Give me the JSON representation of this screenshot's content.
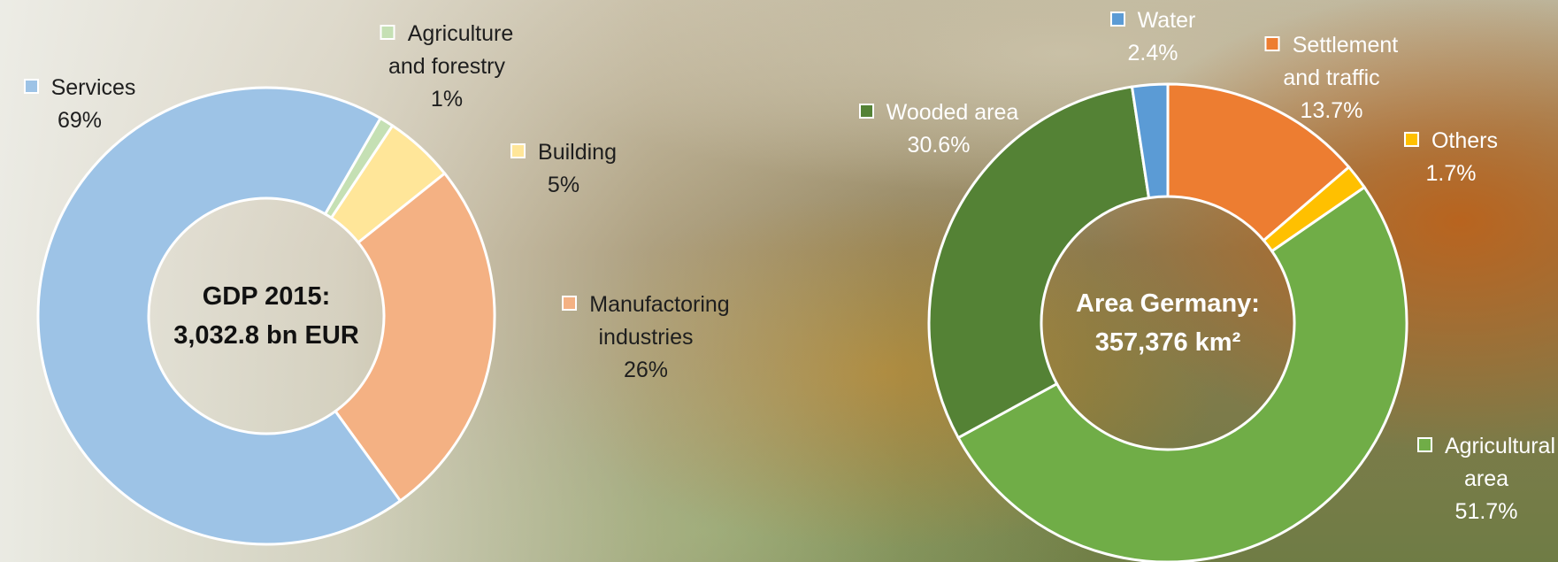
{
  "chart_data": [
    {
      "type": "pie",
      "categories": [
        "Agriculture and forestry",
        "Building",
        "Manufactoring industries",
        "Services"
      ],
      "values": [
        1,
        5,
        26,
        69
      ],
      "value_labels": [
        "1%",
        "5%",
        "26%",
        "69%"
      ],
      "colors": [
        "#c5e0b4",
        "#ffe699",
        "#f4b183",
        "#9dc3e6"
      ],
      "center_text": [
        "GDP 2015:",
        "3,032.8 bn EUR"
      ]
    },
    {
      "type": "pie",
      "categories": [
        "Settlement and traffic",
        "Others",
        "Agricultural area",
        "Wooded area",
        "Water"
      ],
      "values": [
        13.7,
        1.7,
        51.7,
        30.6,
        2.4
      ],
      "value_labels": [
        "13.7%",
        "1.7%",
        "51.7%",
        "30.6%",
        "2.4%"
      ],
      "colors": [
        "#ed7d31",
        "#ffc000",
        "#70ad47",
        "#548235",
        "#5b9bd5"
      ],
      "center_text": [
        "Area Germany:",
        "357,376 km²"
      ]
    }
  ]
}
